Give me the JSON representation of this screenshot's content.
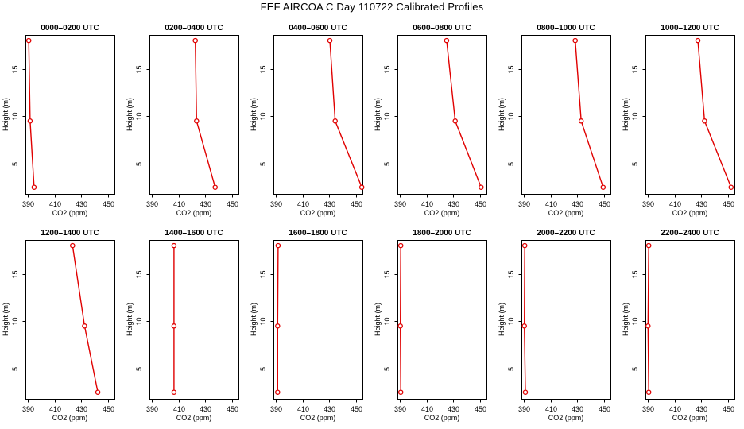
{
  "title": "FEF AIRCOA C  Day 110722  Calibrated Profiles",
  "chart_data": {
    "type": "line",
    "shared": {
      "xlabel": "CO2 (ppm)",
      "ylabel": "Height (m)",
      "xlim": [
        388,
        455
      ],
      "ylim": [
        1.8,
        18.6
      ],
      "xticks": [
        390,
        410,
        430,
        450
      ],
      "xticks_labeled": [
        390,
        430,
        450
      ],
      "yticks": [
        5,
        10,
        15
      ],
      "grid": false,
      "line_color": "#e00000",
      "marker": "open-circle"
    },
    "panels": [
      {
        "title": "0000–0200 UTC",
        "heights": [
          18,
          9.5,
          2.5
        ],
        "co2": [
          390.5,
          391.5,
          394.5
        ]
      },
      {
        "title": "0200–0400 UTC",
        "heights": [
          18,
          9.5,
          2.5
        ],
        "co2": [
          422.5,
          423.5,
          437.5
        ]
      },
      {
        "title": "0400–0600 UTC",
        "heights": [
          18,
          9.5,
          2.5
        ],
        "co2": [
          430.5,
          434.5,
          454.5
        ]
      },
      {
        "title": "0600–0800 UTC",
        "heights": [
          18,
          9.5,
          2.5
        ],
        "co2": [
          425.0,
          431.5,
          451.0
        ]
      },
      {
        "title": "0800–1000 UTC",
        "heights": [
          18,
          9.5,
          2.5
        ],
        "co2": [
          428.5,
          433.0,
          449.5
        ]
      },
      {
        "title": "1000–1200 UTC",
        "heights": [
          18,
          9.5,
          2.5
        ],
        "co2": [
          427.5,
          432.5,
          452.5
        ]
      },
      {
        "title": "1200–1400 UTC",
        "heights": [
          18,
          9.5,
          2.5
        ],
        "co2": [
          423.5,
          432.5,
          442.5
        ]
      },
      {
        "title": "1400–1600 UTC",
        "heights": [
          18,
          9.5,
          2.5
        ],
        "co2": [
          406.5,
          406.5,
          406.5
        ]
      },
      {
        "title": "1600–1800 UTC",
        "heights": [
          18,
          9.5,
          2.5
        ],
        "co2": [
          391.5,
          391.2,
          391.2
        ]
      },
      {
        "title": "1800–2000 UTC",
        "heights": [
          18,
          9.5,
          2.5
        ],
        "co2": [
          390.5,
          390.2,
          390.5
        ]
      },
      {
        "title": "2000–2200 UTC",
        "heights": [
          18,
          9.5,
          2.5
        ],
        "co2": [
          390.5,
          390.2,
          391.0
        ]
      },
      {
        "title": "2200–2400 UTC",
        "heights": [
          18,
          9.5,
          2.5
        ],
        "co2": [
          390.5,
          390.0,
          390.5
        ]
      }
    ]
  }
}
